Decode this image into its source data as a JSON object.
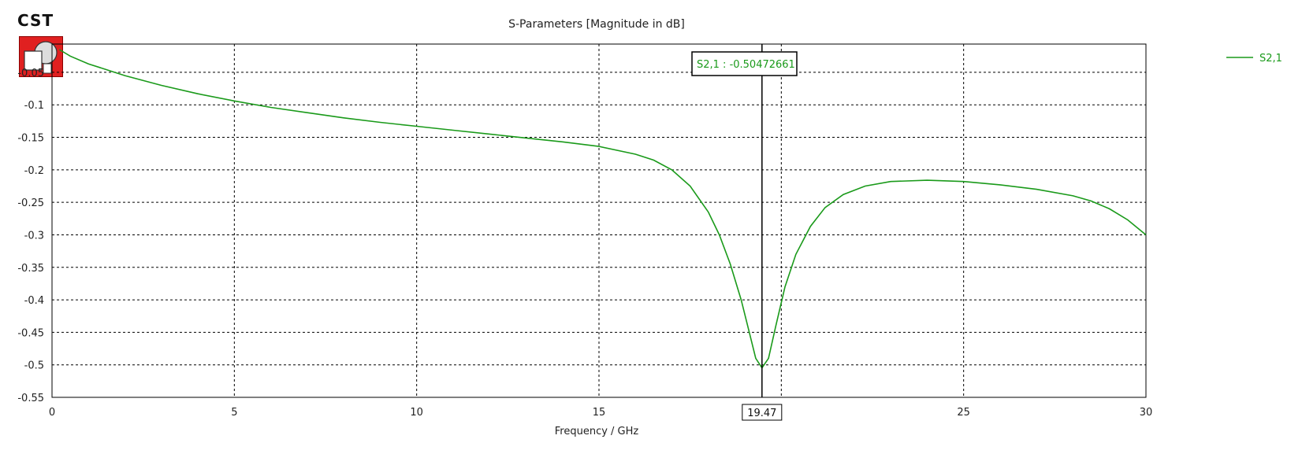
{
  "logo": {
    "text": "CST"
  },
  "chart_data": {
    "type": "line",
    "title": "S-Parameters [Magnitude in dB]",
    "xlabel": "Frequency / GHz",
    "ylabel": "",
    "xlim": [
      0,
      30
    ],
    "ylim": [
      -0.55,
      -0.0065
    ],
    "xticks": [
      0,
      5,
      10,
      15,
      20,
      25,
      30
    ],
    "xtick_labels": [
      "0",
      "5",
      "10",
      "15",
      "",
      "25",
      "30"
    ],
    "yticks": [
      -0.05,
      -0.1,
      -0.15,
      -0.2,
      -0.25,
      -0.3,
      -0.35,
      -0.4,
      -0.45,
      -0.5,
      -0.55
    ],
    "ytick_labels": [
      "-0.05",
      "-0.1",
      "-0.15",
      "-0.2",
      "-0.25",
      "-0.3",
      "-0.35",
      "-0.4",
      "-0.45",
      "-0.5",
      "-0.55"
    ],
    "grid": true,
    "legend": {
      "position": "right",
      "entries": [
        "S2,1"
      ]
    },
    "series": [
      {
        "name": "S2,1",
        "color": "#1a9a1a",
        "x": [
          0.2,
          0.5,
          1,
          2,
          3,
          4,
          5,
          6,
          7,
          8,
          9,
          10,
          11,
          12,
          13,
          14,
          15,
          16,
          16.5,
          17,
          17.5,
          18,
          18.3,
          18.6,
          18.9,
          19.1,
          19.3,
          19.47,
          19.65,
          19.85,
          20.1,
          20.4,
          20.8,
          21.2,
          21.7,
          22.3,
          23,
          24,
          25,
          26,
          27,
          28,
          28.5,
          29,
          29.5,
          30
        ],
        "y": [
          -0.015,
          -0.025,
          -0.037,
          -0.055,
          -0.07,
          -0.083,
          -0.094,
          -0.104,
          -0.112,
          -0.12,
          -0.127,
          -0.133,
          -0.139,
          -0.145,
          -0.151,
          -0.157,
          -0.164,
          -0.176,
          -0.185,
          -0.2,
          -0.225,
          -0.265,
          -0.3,
          -0.345,
          -0.4,
          -0.445,
          -0.49,
          -0.5047,
          -0.49,
          -0.44,
          -0.38,
          -0.33,
          -0.287,
          -0.258,
          -0.238,
          -0.225,
          -0.218,
          -0.216,
          -0.218,
          -0.223,
          -0.23,
          -0.24,
          -0.248,
          -0.26,
          -0.277,
          -0.3
        ]
      }
    ],
    "marker": {
      "x": 19.47,
      "x_label": "19.47",
      "label": "S2,1 : -0.50472661"
    }
  }
}
